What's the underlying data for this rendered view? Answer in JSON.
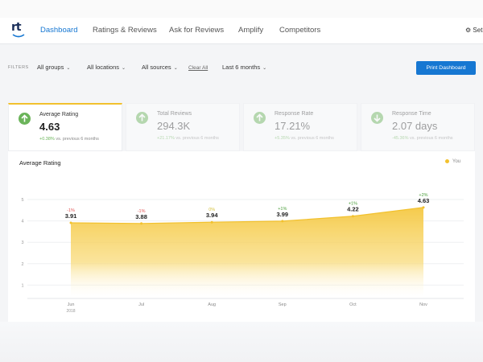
{
  "nav": {
    "logo_text": "rt",
    "items": [
      {
        "label": "Dashboard",
        "active": true
      },
      {
        "label": "Ratings & Reviews",
        "active": false
      },
      {
        "label": "Ask for Reviews",
        "active": false
      },
      {
        "label": "Amplify",
        "active": false
      },
      {
        "label": "Competitors",
        "active": false
      }
    ],
    "settings_label": "Set"
  },
  "filters": {
    "label": "FILTERS",
    "groups": "All groups",
    "locations": "All locations",
    "sources": "All sources",
    "clear_all": "Clear All",
    "period": "Last 6 months",
    "print_button": "Print Dashboard"
  },
  "cards": [
    {
      "title": "Average Rating",
      "value": "4.63",
      "change": "+0.38%",
      "change_note": "vs. previous 6 months",
      "direction": "up",
      "active": true
    },
    {
      "title": "Total Reviews",
      "value": "294.3K",
      "change": "+21.17%",
      "change_note": "vs. previous 6 months",
      "direction": "up",
      "active": false
    },
    {
      "title": "Response Rate",
      "value": "17.21%",
      "change": "+5.35%",
      "change_note": "vs. previous 6 months",
      "direction": "up",
      "active": false
    },
    {
      "title": "Response Time",
      "value": "2.07 days",
      "change": "-45.36%",
      "change_note": "vs. previous 6 months",
      "direction": "down",
      "active": false
    }
  ],
  "chart_data": {
    "type": "area",
    "title": "Average Rating",
    "legend": [
      {
        "name": "You",
        "color": "#f2c12e"
      }
    ],
    "legend_position": "top-right",
    "categories": [
      "Jun",
      "Jul",
      "Aug",
      "Sep",
      "Oct",
      "Nov"
    ],
    "year_label": "2018",
    "series": [
      {
        "name": "You",
        "values": [
          3.91,
          3.88,
          3.94,
          3.99,
          4.22,
          4.63
        ]
      }
    ],
    "labels": [
      "3.91",
      "3.88",
      "3.94",
      "3.99",
      "4.22",
      "4.63"
    ],
    "changes": [
      "-1%",
      "-1%",
      "0%",
      "+1%",
      "+1%",
      "+2%"
    ],
    "change_colors": [
      "#e05252",
      "#e05252",
      "#d4c03a",
      "#4a9e3a",
      "#4a9e3a",
      "#4a9e3a"
    ],
    "yticks": [
      "1",
      "2",
      "3",
      "4",
      "5"
    ],
    "ylim": [
      0,
      5.5
    ],
    "grid": true
  },
  "colors": {
    "accent": "#1677d2",
    "rating_fill": "#f2c12e",
    "positive": "#6bb45a"
  }
}
